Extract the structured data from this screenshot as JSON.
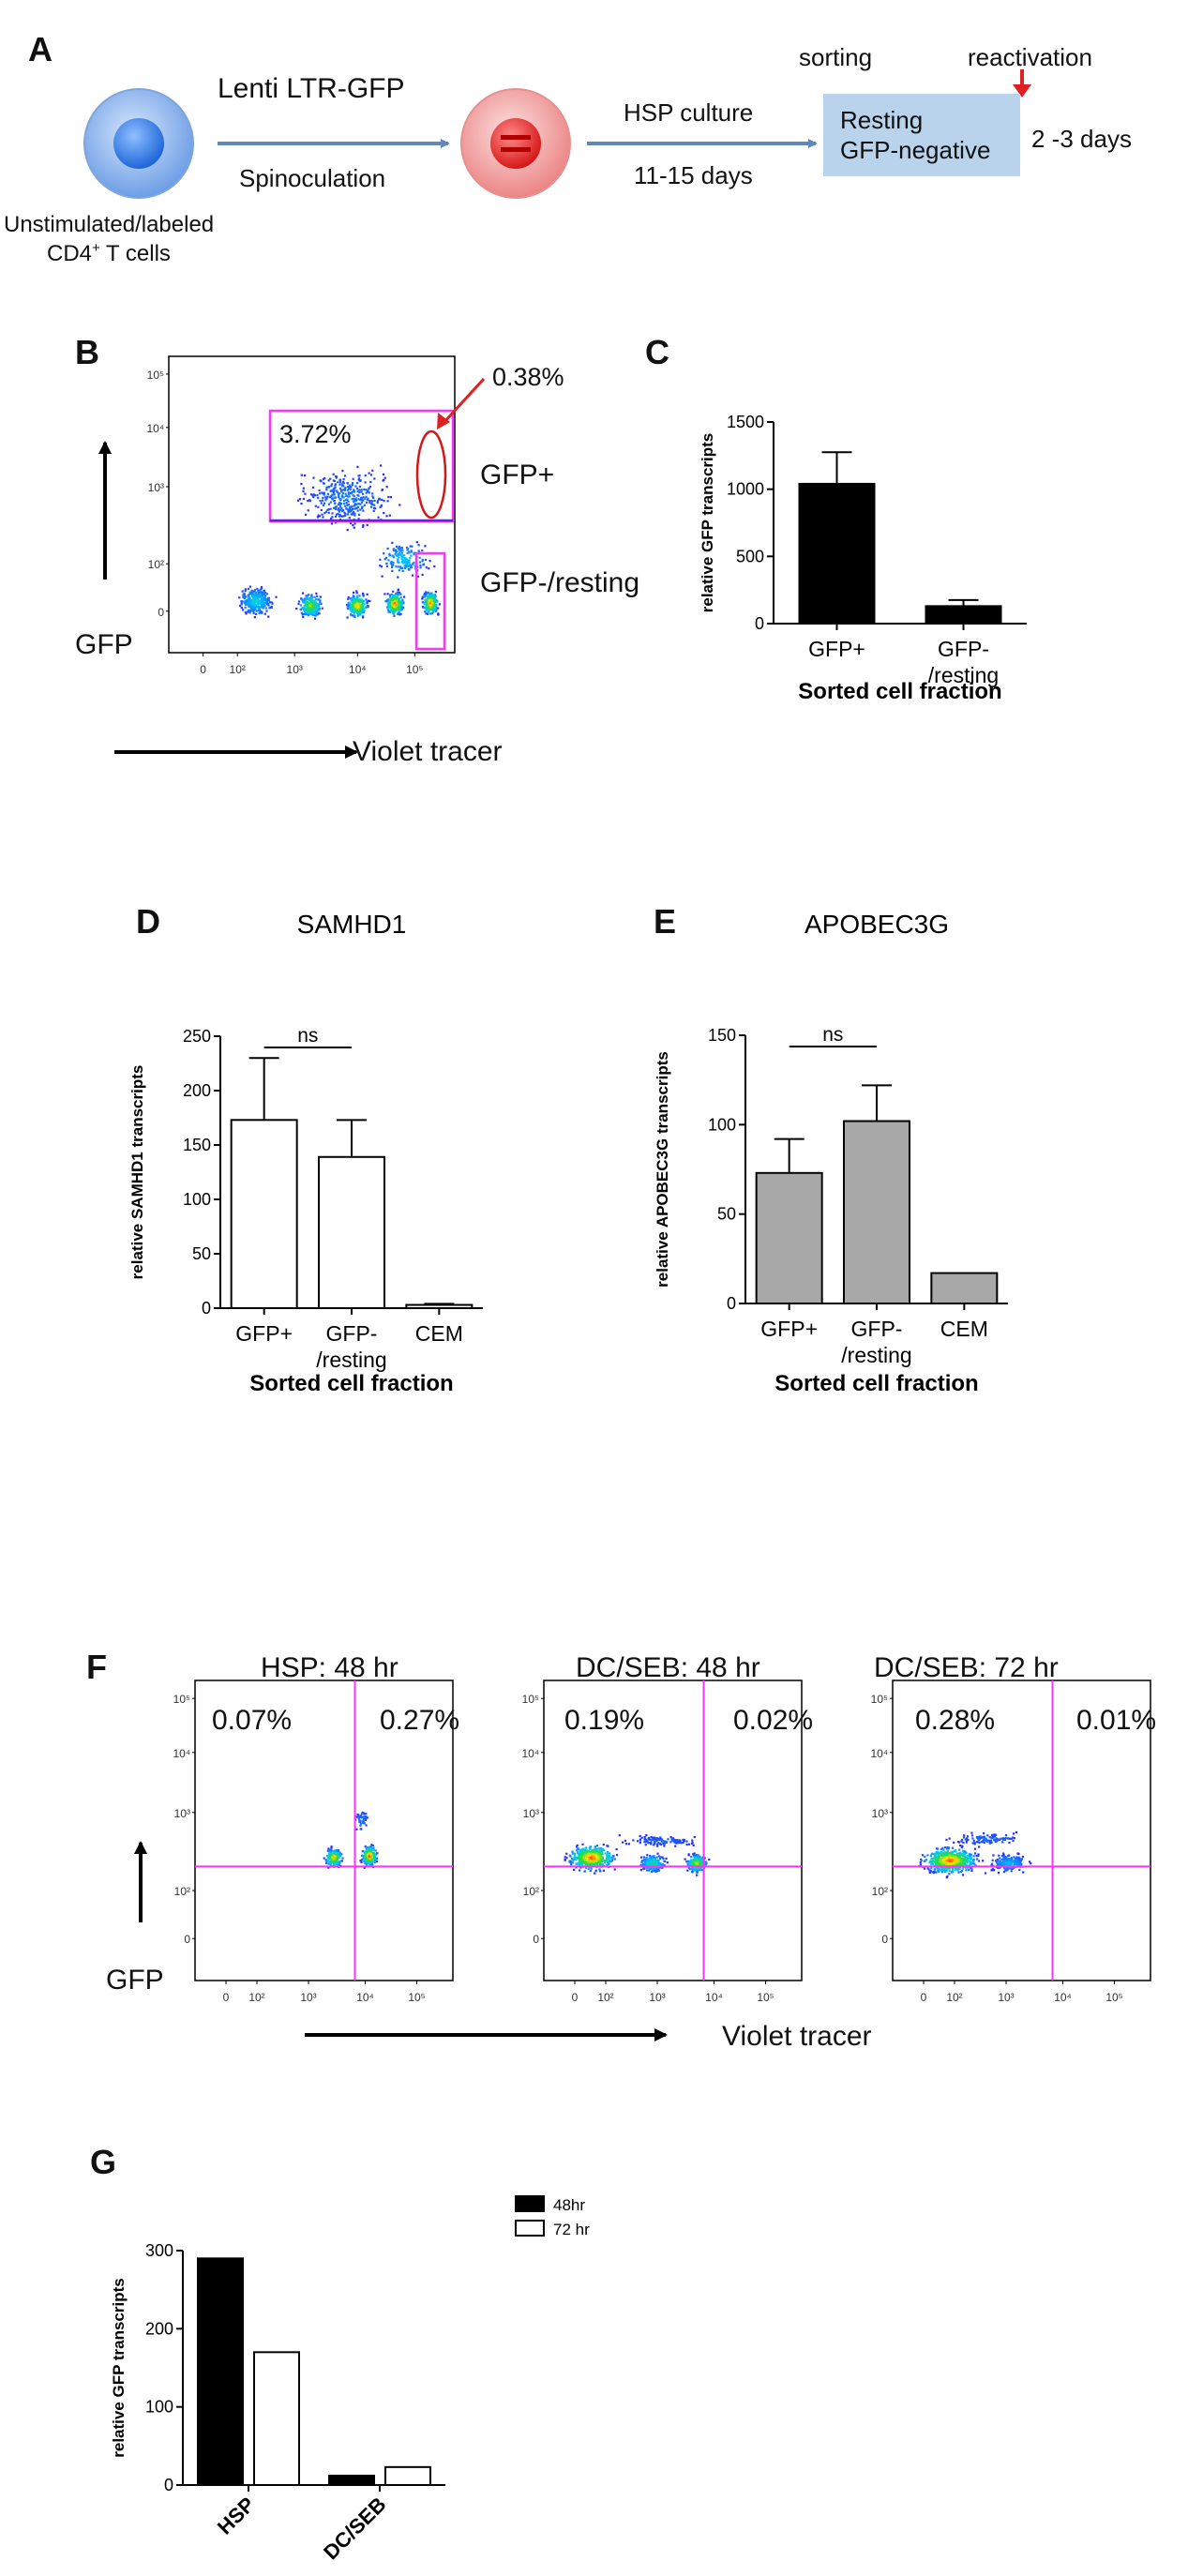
{
  "panel_labels": {
    "a": "A",
    "b": "B",
    "c": "C",
    "d": "D",
    "e": "E",
    "f": "F",
    "g": "G"
  },
  "panel_a": {
    "step1_top": "Lenti LTR-GFP",
    "step1_bottom": "Spinoculation",
    "step2_top": "HSP culture",
    "step2_bottom": "11-15 days",
    "sorting": "sorting",
    "reactivation": "reactivation",
    "box_line1": "Resting",
    "box_line2": "GFP-negative",
    "duration": "2 -3 days",
    "cell_label_line1": "Unstimulated/labeled",
    "cell_label_line2": "CD4",
    "cell_label_sup": "+",
    "cell_label_rest": " T cells"
  },
  "panel_b": {
    "gate_upper_pct": "3.72%",
    "gate_ellipse_pct": "0.38%",
    "label_gfp_pos": "GFP+",
    "label_gfp_neg": "GFP-/resting",
    "y_axis": "GFP",
    "x_axis": "Violet tracer"
  },
  "panel_f": {
    "titles": [
      "HSP: 48 hr",
      "DC/SEB: 48 hr",
      "DC/SEB: 72 hr"
    ],
    "upper_left": [
      "0.07%",
      "0.19%",
      "0.28%"
    ],
    "upper_right": [
      "0.27%",
      "0.02%",
      "0.01%"
    ],
    "y_axis": "GFP",
    "x_axis": "Violet tracer"
  },
  "flow_ticks": {
    "y": [
      "10⁵",
      "10⁴",
      "10³",
      "10²",
      "0"
    ],
    "x": [
      "0",
      "10²",
      "10³",
      "10⁴",
      "10⁵"
    ]
  },
  "chart_data": [
    {
      "id": "C",
      "type": "bar",
      "title": "",
      "categories": [
        "GFP+",
        "GFP-/resting"
      ],
      "values": [
        1040,
        130
      ],
      "errors": [
        235,
        45
      ],
      "ylabel": "relative GFP transcripts",
      "xlabel": "Sorted cell fraction",
      "ylim": [
        0,
        1500
      ],
      "yticks": [
        0,
        500,
        1000,
        1500
      ],
      "colors": [
        "#000000",
        "#000000"
      ]
    },
    {
      "id": "D",
      "type": "bar",
      "title": "SAMHD1",
      "categories": [
        "GFP+",
        "GFP-/resting",
        "CEM"
      ],
      "values": [
        173,
        139,
        3
      ],
      "errors": [
        57,
        34,
        1
      ],
      "ylabel": "relative SAMHD1 transcripts",
      "xlabel": "Sorted cell fraction",
      "ylim": [
        0,
        250
      ],
      "yticks": [
        0,
        50,
        100,
        150,
        200,
        250
      ],
      "colors": [
        "#ffffff",
        "#ffffff",
        "#ffffff"
      ],
      "annotation": "ns"
    },
    {
      "id": "E",
      "type": "bar",
      "title": "APOBEC3G",
      "categories": [
        "GFP+",
        "GFP-/resting",
        "CEM"
      ],
      "values": [
        73,
        102,
        17
      ],
      "errors": [
        19,
        20,
        0
      ],
      "ylabel": "relative APOBEC3G transcripts",
      "xlabel": "Sorted cell fraction",
      "ylim": [
        0,
        150
      ],
      "yticks": [
        0,
        50,
        100,
        150
      ],
      "colors": [
        "#a8a8a8",
        "#a8a8a8",
        "#a8a8a8"
      ],
      "annotation": "ns"
    },
    {
      "id": "G",
      "type": "bar",
      "title": "",
      "categories": [
        "HSP",
        "DC/SEB"
      ],
      "series": [
        {
          "name": "48hr",
          "values": [
            290,
            12
          ],
          "color": "#000000"
        },
        {
          "name": "72 hr",
          "values": [
            170,
            23
          ],
          "color": "#ffffff"
        }
      ],
      "ylabel": "relative GFP transcripts",
      "xlabel": "",
      "ylim": [
        0,
        300
      ],
      "yticks": [
        0,
        100,
        200,
        300
      ]
    }
  ]
}
